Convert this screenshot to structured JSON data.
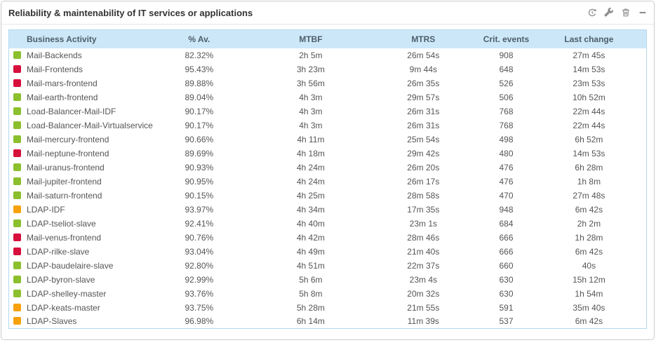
{
  "widget": {
    "title": "Reliability & maintenability of IT services or applications",
    "toolbar": {
      "icons": [
        {
          "name": "refresh-icon"
        },
        {
          "name": "wrench-icon"
        },
        {
          "name": "trash-icon"
        },
        {
          "name": "minimize-icon"
        }
      ]
    }
  },
  "colors": {
    "status_green": "#8cbf2d",
    "status_red": "#d60f3c",
    "status_orange": "#f8a10a",
    "header_bg": "#cce8f8",
    "table_border": "#b3d9ef"
  },
  "table": {
    "columns": [
      {
        "label": "Business Activity"
      },
      {
        "label": "% Av."
      },
      {
        "label": "MTBF"
      },
      {
        "label": "MTRS"
      },
      {
        "label": "Crit. events"
      },
      {
        "label": "Last change"
      }
    ],
    "rows": [
      {
        "status": "green",
        "name": "Mail-Backends",
        "av": "82.32%",
        "mtbf": "2h 5m",
        "mtrs": "26m 54s",
        "crit": "908",
        "last": "27m 45s"
      },
      {
        "status": "red",
        "name": "Mail-Frontends",
        "av": "95.43%",
        "mtbf": "3h 23m",
        "mtrs": "9m 44s",
        "crit": "648",
        "last": "14m 53s"
      },
      {
        "status": "red",
        "name": "Mail-mars-frontend",
        "av": "89.88%",
        "mtbf": "3h 56m",
        "mtrs": "26m 35s",
        "crit": "526",
        "last": "23m 53s"
      },
      {
        "status": "green",
        "name": "Mail-earth-frontend",
        "av": "89.04%",
        "mtbf": "4h 3m",
        "mtrs": "29m 57s",
        "crit": "506",
        "last": "10h 52m"
      },
      {
        "status": "green",
        "name": "Load-Balancer-Mail-IDF",
        "av": "90.17%",
        "mtbf": "4h 3m",
        "mtrs": "26m 31s",
        "crit": "768",
        "last": "22m 44s"
      },
      {
        "status": "green",
        "name": "Load-Balancer-Mail-Virtualservice",
        "av": "90.17%",
        "mtbf": "4h 3m",
        "mtrs": "26m 31s",
        "crit": "768",
        "last": "22m 44s"
      },
      {
        "status": "green",
        "name": "Mail-mercury-frontend",
        "av": "90.66%",
        "mtbf": "4h 11m",
        "mtrs": "25m 54s",
        "crit": "498",
        "last": "6h 52m"
      },
      {
        "status": "red",
        "name": "Mail-neptune-frontend",
        "av": "89.69%",
        "mtbf": "4h 18m",
        "mtrs": "29m 42s",
        "crit": "480",
        "last": "14m 53s"
      },
      {
        "status": "green",
        "name": "Mail-uranus-frontend",
        "av": "90.93%",
        "mtbf": "4h 24m",
        "mtrs": "26m 20s",
        "crit": "476",
        "last": "6h 28m"
      },
      {
        "status": "green",
        "name": "Mail-jupiter-frontend",
        "av": "90.95%",
        "mtbf": "4h 24m",
        "mtrs": "26m 17s",
        "crit": "476",
        "last": "1h 8m"
      },
      {
        "status": "green",
        "name": "Mail-saturn-frontend",
        "av": "90.15%",
        "mtbf": "4h 25m",
        "mtrs": "28m 58s",
        "crit": "470",
        "last": "27m 48s"
      },
      {
        "status": "orange",
        "name": "LDAP-IDF",
        "av": "93.97%",
        "mtbf": "4h 34m",
        "mtrs": "17m 35s",
        "crit": "948",
        "last": "6m 42s"
      },
      {
        "status": "green",
        "name": "LDAP-tseliot-slave",
        "av": "92.41%",
        "mtbf": "4h 40m",
        "mtrs": "23m 1s",
        "crit": "684",
        "last": "2h 2m"
      },
      {
        "status": "red",
        "name": "Mail-venus-frontend",
        "av": "90.76%",
        "mtbf": "4h 42m",
        "mtrs": "28m 46s",
        "crit": "666",
        "last": "1h 28m"
      },
      {
        "status": "red",
        "name": "LDAP-rilke-slave",
        "av": "93.04%",
        "mtbf": "4h 49m",
        "mtrs": "21m 40s",
        "crit": "666",
        "last": "6m 42s"
      },
      {
        "status": "green",
        "name": "LDAP-baudelaire-slave",
        "av": "92.80%",
        "mtbf": "4h 51m",
        "mtrs": "22m 37s",
        "crit": "660",
        "last": "40s"
      },
      {
        "status": "green",
        "name": "LDAP-byron-slave",
        "av": "92.99%",
        "mtbf": "5h 6m",
        "mtrs": "23m 4s",
        "crit": "630",
        "last": "15h 12m"
      },
      {
        "status": "green",
        "name": "LDAP-shelley-master",
        "av": "93.76%",
        "mtbf": "5h 8m",
        "mtrs": "20m 32s",
        "crit": "630",
        "last": "1h 54m"
      },
      {
        "status": "orange",
        "name": "LDAP-keats-master",
        "av": "93.75%",
        "mtbf": "5h 28m",
        "mtrs": "21m 55s",
        "crit": "591",
        "last": "35m 40s"
      },
      {
        "status": "orange",
        "name": "LDAP-Slaves",
        "av": "96.98%",
        "mtbf": "6h 14m",
        "mtrs": "11m 39s",
        "crit": "537",
        "last": "6m 42s"
      }
    ]
  }
}
